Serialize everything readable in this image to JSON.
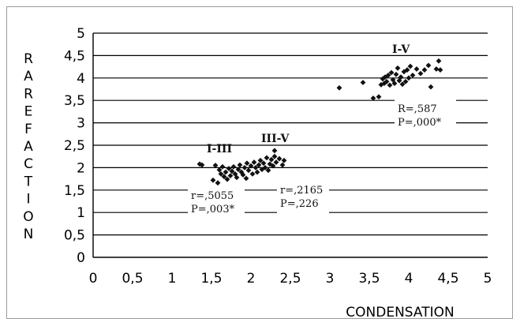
{
  "chart_data": {
    "type": "scatter",
    "xlabel": "CONDENSATION",
    "ylabel": "RAREFACTION",
    "xlim": [
      0,
      5
    ],
    "ylim": [
      0,
      5
    ],
    "x_ticks": [
      "0",
      "0,5",
      "1",
      "1,5",
      "2",
      "2,5",
      "3",
      "3,5",
      "4",
      "4,5",
      "5"
    ],
    "y_ticks": [
      "0",
      "0,5",
      "1",
      "1,5",
      "2",
      "2,5",
      "3",
      "3,5",
      "4",
      "4,5",
      "5"
    ],
    "grid": "horizontal",
    "groups": [
      {
        "name": "I-III",
        "stats": [
          "r=,5055",
          "P=,003*"
        ],
        "points": [
          [
            1.35,
            2.08
          ],
          [
            1.38,
            2.06
          ],
          [
            1.52,
            1.72
          ],
          [
            1.55,
            2.05
          ],
          [
            1.58,
            1.66
          ],
          [
            1.6,
            1.95
          ],
          [
            1.62,
            1.86
          ],
          [
            1.64,
            2.02
          ],
          [
            1.66,
            1.8
          ],
          [
            1.68,
            1.9
          ],
          [
            1.7,
            1.74
          ],
          [
            1.72,
            1.98
          ],
          [
            1.74,
            1.82
          ],
          [
            1.76,
            1.92
          ],
          [
            1.78,
            2.02
          ],
          [
            1.8,
            1.86
          ],
          [
            1.82,
            1.78
          ],
          [
            1.84,
            1.96
          ],
          [
            1.86,
            2.06
          ],
          [
            1.88,
            1.9
          ],
          [
            1.9,
            1.84
          ],
          [
            1.92,
            2.0
          ],
          [
            1.94,
            1.76
          ]
        ]
      },
      {
        "name": "III-V",
        "stats": [
          "r=,2165",
          "P=,226"
        ],
        "points": [
          [
            1.95,
            2.1
          ],
          [
            1.97,
            1.94
          ],
          [
            2.0,
            2.04
          ],
          [
            2.02,
            1.86
          ],
          [
            2.04,
            2.12
          ],
          [
            2.06,
            2.0
          ],
          [
            2.08,
            1.9
          ],
          [
            2.1,
            2.06
          ],
          [
            2.12,
            2.16
          ],
          [
            2.14,
            1.96
          ],
          [
            2.16,
            2.1
          ],
          [
            2.18,
            2.0
          ],
          [
            2.2,
            2.22
          ],
          [
            2.22,
            1.94
          ],
          [
            2.24,
            2.08
          ],
          [
            2.26,
            2.18
          ],
          [
            2.28,
            2.04
          ],
          [
            2.3,
            2.25
          ],
          [
            2.3,
            2.38
          ],
          [
            2.32,
            2.12
          ],
          [
            2.36,
            2.2
          ],
          [
            2.4,
            2.06
          ],
          [
            2.42,
            2.16
          ]
        ]
      },
      {
        "name": "I-V",
        "stats": [
          "R=,587",
          "P=,000*"
        ],
        "points": [
          [
            3.12,
            3.78
          ],
          [
            3.42,
            3.9
          ],
          [
            3.55,
            3.55
          ],
          [
            3.62,
            3.58
          ],
          [
            3.65,
            3.85
          ],
          [
            3.67,
            3.98
          ],
          [
            3.69,
            3.88
          ],
          [
            3.7,
            4.02
          ],
          [
            3.72,
            3.92
          ],
          [
            3.74,
            4.06
          ],
          [
            3.76,
            3.84
          ],
          [
            3.78,
            4.12
          ],
          [
            3.8,
            3.96
          ],
          [
            3.82,
            3.88
          ],
          [
            3.84,
            4.08
          ],
          [
            3.86,
            4.22
          ],
          [
            3.88,
            3.94
          ],
          [
            3.9,
            4.02
          ],
          [
            3.92,
            3.86
          ],
          [
            3.94,
            4.14
          ],
          [
            3.96,
            3.92
          ],
          [
            3.98,
            4.18
          ],
          [
            4.0,
            4.0
          ],
          [
            4.02,
            4.26
          ],
          [
            4.05,
            4.06
          ],
          [
            4.1,
            4.2
          ],
          [
            4.15,
            4.1
          ],
          [
            4.2,
            4.18
          ],
          [
            4.25,
            4.28
          ],
          [
            4.28,
            3.8
          ],
          [
            4.35,
            4.2
          ],
          [
            4.38,
            4.38
          ],
          [
            4.4,
            4.18
          ]
        ]
      }
    ]
  }
}
